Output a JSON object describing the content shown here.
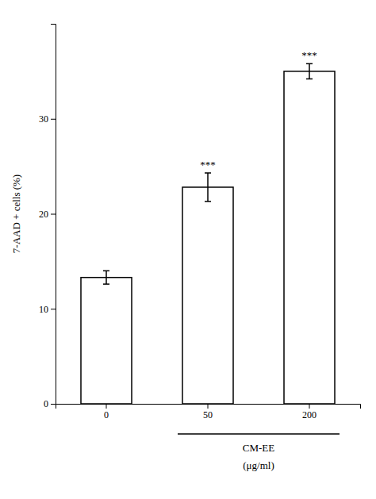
{
  "chart_data": {
    "type": "bar",
    "categories": [
      "0",
      "50",
      "200"
    ],
    "values": [
      13.3,
      22.8,
      35.0
    ],
    "errors": [
      0.7,
      1.5,
      0.8
    ],
    "color": "#ffffff",
    "ylabel": "7-AAD + cells (%)",
    "xlabel": [
      "CM-EE",
      "(μg/ml)"
    ],
    "annotations": [
      {
        "text": "***",
        "x": "50"
      },
      {
        "text": "***",
        "x": "200"
      }
    ],
    "ylim": [
      0,
      40
    ],
    "yticks": [
      0,
      10,
      20,
      30
    ],
    "grid": false
  }
}
